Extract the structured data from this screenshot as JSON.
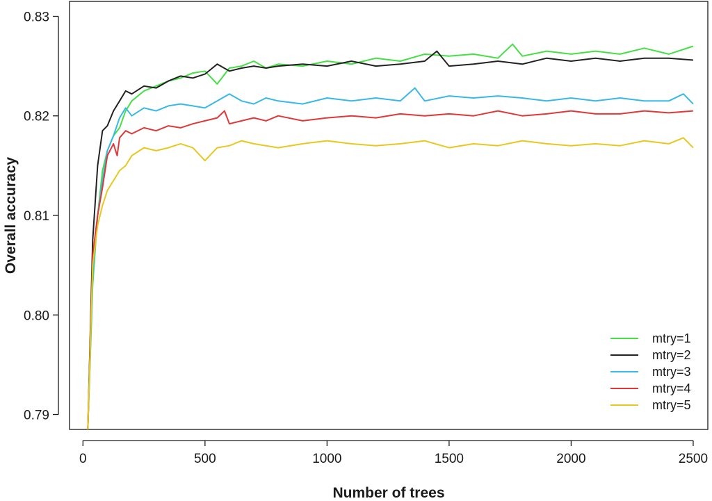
{
  "chart_data": {
    "type": "line",
    "xlabel": "Number of trees",
    "ylabel": "Overall accuracy",
    "xlim": [
      -55,
      2560
    ],
    "ylim": [
      0.7885,
      0.8315
    ],
    "x_ticks": [
      0,
      500,
      1000,
      1500,
      2000,
      2500
    ],
    "x_tick_labels": [
      "0",
      "500",
      "1000",
      "1500",
      "2000",
      "2500"
    ],
    "y_ticks": [
      0.79,
      0.8,
      0.81,
      0.82,
      0.83
    ],
    "y_tick_labels": [
      "0.79",
      "0.80",
      "0.81",
      "0.82",
      "0.83"
    ],
    "legend_position": "bottom-right",
    "grid": false,
    "series": [
      {
        "name": "mtry=1",
        "color": "#44e044",
        "x": [
          20,
          40,
          60,
          80,
          100,
          125,
          150,
          175,
          200,
          250,
          300,
          350,
          400,
          450,
          500,
          550,
          600,
          650,
          700,
          750,
          800,
          900,
          1000,
          1100,
          1200,
          1300,
          1400,
          1500,
          1600,
          1700,
          1760,
          1800,
          1900,
          2000,
          2100,
          2200,
          2300,
          2400,
          2500
        ],
        "y": [
          0.7885,
          0.803,
          0.81,
          0.8145,
          0.8165,
          0.818,
          0.8188,
          0.8205,
          0.8215,
          0.8225,
          0.823,
          0.8235,
          0.8238,
          0.8243,
          0.8245,
          0.8232,
          0.8248,
          0.825,
          0.8255,
          0.8248,
          0.8252,
          0.825,
          0.8255,
          0.8252,
          0.8258,
          0.8255,
          0.8262,
          0.826,
          0.8262,
          0.8258,
          0.8272,
          0.826,
          0.8265,
          0.8262,
          0.8265,
          0.8262,
          0.8268,
          0.8262,
          0.827
        ]
      },
      {
        "name": "mtry=2",
        "color": "#222222",
        "x": [
          20,
          40,
          60,
          80,
          100,
          125,
          150,
          175,
          200,
          250,
          300,
          350,
          400,
          450,
          500,
          550,
          600,
          650,
          700,
          750,
          800,
          900,
          1000,
          1100,
          1200,
          1300,
          1400,
          1450,
          1500,
          1600,
          1700,
          1800,
          1900,
          2000,
          2100,
          2200,
          2300,
          2400,
          2500
        ],
        "y": [
          0.7885,
          0.8075,
          0.815,
          0.8185,
          0.819,
          0.8205,
          0.8215,
          0.8225,
          0.8222,
          0.823,
          0.8228,
          0.8235,
          0.824,
          0.8238,
          0.8242,
          0.8252,
          0.8245,
          0.8248,
          0.825,
          0.8248,
          0.825,
          0.8252,
          0.825,
          0.8255,
          0.825,
          0.8252,
          0.8255,
          0.8265,
          0.825,
          0.8252,
          0.8255,
          0.8252,
          0.8258,
          0.8255,
          0.8258,
          0.8255,
          0.8258,
          0.8258,
          0.8256
        ]
      },
      {
        "name": "mtry=3",
        "color": "#38b8e8",
        "x": [
          20,
          40,
          60,
          80,
          100,
          125,
          150,
          175,
          200,
          250,
          300,
          350,
          400,
          450,
          500,
          550,
          600,
          650,
          700,
          750,
          800,
          900,
          1000,
          1100,
          1200,
          1300,
          1360,
          1400,
          1500,
          1600,
          1700,
          1800,
          1900,
          2000,
          2100,
          2200,
          2300,
          2400,
          2460,
          2500
        ],
        "y": [
          0.7885,
          0.804,
          0.81,
          0.8135,
          0.8165,
          0.818,
          0.8198,
          0.8208,
          0.82,
          0.8208,
          0.8205,
          0.821,
          0.8212,
          0.821,
          0.8208,
          0.8215,
          0.8222,
          0.8215,
          0.8212,
          0.8218,
          0.8215,
          0.8212,
          0.8218,
          0.8215,
          0.8218,
          0.8215,
          0.8228,
          0.8215,
          0.822,
          0.8218,
          0.822,
          0.8218,
          0.8215,
          0.8218,
          0.8215,
          0.8218,
          0.8215,
          0.8215,
          0.8222,
          0.8212
        ]
      },
      {
        "name": "mtry=4",
        "color": "#e03838",
        "x": [
          20,
          40,
          60,
          80,
          100,
          125,
          140,
          150,
          175,
          200,
          250,
          300,
          350,
          400,
          450,
          500,
          550,
          580,
          600,
          650,
          700,
          750,
          800,
          900,
          1000,
          1100,
          1200,
          1300,
          1400,
          1500,
          1600,
          1700,
          1800,
          1900,
          2000,
          2100,
          2200,
          2300,
          2400,
          2500
        ],
        "y": [
          0.7885,
          0.806,
          0.81,
          0.8128,
          0.816,
          0.8172,
          0.816,
          0.8178,
          0.8185,
          0.8182,
          0.8188,
          0.8185,
          0.819,
          0.8188,
          0.8192,
          0.8195,
          0.8198,
          0.8205,
          0.8192,
          0.8195,
          0.8198,
          0.8195,
          0.82,
          0.8195,
          0.8198,
          0.82,
          0.8198,
          0.8202,
          0.82,
          0.8202,
          0.82,
          0.8205,
          0.82,
          0.8202,
          0.8205,
          0.8202,
          0.8202,
          0.8205,
          0.8203,
          0.8205
        ]
      },
      {
        "name": "mtry=5",
        "color": "#e8c820",
        "x": [
          20,
          40,
          60,
          80,
          100,
          125,
          150,
          175,
          200,
          250,
          300,
          350,
          400,
          450,
          500,
          550,
          600,
          650,
          700,
          750,
          800,
          900,
          1000,
          1100,
          1200,
          1300,
          1400,
          1500,
          1600,
          1700,
          1800,
          1900,
          2000,
          2100,
          2200,
          2300,
          2400,
          2460,
          2500
        ],
        "y": [
          0.7885,
          0.805,
          0.809,
          0.811,
          0.8125,
          0.8135,
          0.8145,
          0.815,
          0.816,
          0.8168,
          0.8165,
          0.8168,
          0.8172,
          0.8168,
          0.8155,
          0.8168,
          0.817,
          0.8175,
          0.8172,
          0.817,
          0.8168,
          0.8172,
          0.8175,
          0.8172,
          0.817,
          0.8172,
          0.8175,
          0.8168,
          0.8172,
          0.817,
          0.8175,
          0.8172,
          0.817,
          0.8172,
          0.817,
          0.8175,
          0.8172,
          0.8178,
          0.8168
        ]
      }
    ]
  }
}
